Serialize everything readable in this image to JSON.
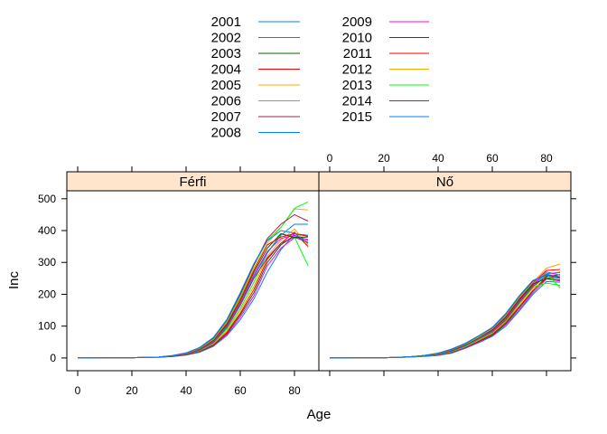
{
  "chart_data": {
    "type": "line",
    "xlabel": "Age",
    "ylabel": "Inc",
    "xlim": [
      -4,
      89
    ],
    "ylim": [
      -40,
      525
    ],
    "x_ticks": [
      "0",
      "20",
      "40",
      "60",
      "80"
    ],
    "y_ticks": [
      "0",
      "100",
      "200",
      "300",
      "400",
      "500"
    ],
    "panels": [
      {
        "label": "Férfi"
      },
      {
        "label": "Nő"
      }
    ],
    "x": [
      0,
      5,
      10,
      15,
      20,
      25,
      30,
      35,
      40,
      45,
      50,
      55,
      60,
      65,
      70,
      75,
      80,
      85
    ],
    "legend": {
      "placement": "top",
      "columns": 2
    },
    "series": [
      {
        "name": "2001",
        "color": "#0080ff",
        "Férfi": [
          0,
          0,
          1,
          1,
          1,
          2,
          3,
          5,
          9,
          18,
          36,
          70,
          120,
          185,
          270,
          340,
          390,
          385
        ],
        "Nő": [
          0,
          0,
          1,
          1,
          1,
          2,
          3,
          5,
          8,
          15,
          30,
          48,
          68,
          100,
          148,
          200,
          240,
          238
        ]
      },
      {
        "name": "2002",
        "color": "#ff00ff",
        "Férfi": [
          0,
          0,
          1,
          1,
          1,
          2,
          3,
          5,
          10,
          20,
          38,
          72,
          128,
          195,
          290,
          345,
          378,
          365
        ],
        "Nő": [
          0,
          0,
          1,
          1,
          1,
          2,
          3,
          6,
          9,
          17,
          31,
          50,
          70,
          105,
          152,
          205,
          248,
          242
        ]
      },
      {
        "name": "2003",
        "color": "#006400",
        "Férfi": [
          0,
          0,
          1,
          1,
          1,
          2,
          2,
          5,
          10,
          21,
          40,
          76,
          135,
          205,
          300,
          355,
          385,
          360
        ],
        "Nő": [
          0,
          0,
          1,
          1,
          1,
          2,
          3,
          6,
          10,
          18,
          33,
          52,
          72,
          108,
          158,
          210,
          255,
          262
        ]
      },
      {
        "name": "2004",
        "color": "#ff0000",
        "Férfi": [
          0,
          0,
          1,
          1,
          1,
          2,
          3,
          6,
          11,
          22,
          42,
          80,
          140,
          215,
          310,
          360,
          395,
          350
        ],
        "Nő": [
          0,
          0,
          1,
          1,
          1,
          2,
          3,
          6,
          10,
          19,
          34,
          54,
          75,
          112,
          162,
          212,
          250,
          255
        ]
      },
      {
        "name": "2005",
        "color": "#ffa500",
        "Férfi": [
          0,
          0,
          1,
          1,
          1,
          2,
          3,
          6,
          12,
          23,
          44,
          84,
          148,
          225,
          320,
          370,
          405,
          355
        ],
        "Nő": [
          0,
          0,
          1,
          1,
          1,
          2,
          3,
          6,
          11,
          20,
          35,
          56,
          78,
          115,
          168,
          218,
          262,
          270
        ]
      },
      {
        "name": "2006",
        "color": "#00ff00",
        "Férfi": [
          0,
          0,
          1,
          1,
          1,
          2,
          3,
          6,
          12,
          24,
          46,
          90,
          155,
          238,
          330,
          390,
          380,
          290
        ],
        "Nő": [
          0,
          0,
          1,
          1,
          1,
          2,
          3,
          6,
          11,
          21,
          36,
          58,
          80,
          118,
          172,
          222,
          235,
          228
        ]
      },
      {
        "name": "2007",
        "color": "#a0205a",
        "Férfi": [
          0,
          0,
          1,
          1,
          1,
          2,
          3,
          6,
          12,
          25,
          48,
          95,
          165,
          250,
          315,
          360,
          380,
          372
        ],
        "Nő": [
          0,
          0,
          1,
          1,
          1,
          2,
          4,
          7,
          12,
          22,
          38,
          60,
          82,
          120,
          175,
          225,
          258,
          250
        ]
      },
      {
        "name": "2008",
        "color": "#0080ff",
        "Férfi": [
          0,
          0,
          1,
          1,
          1,
          2,
          3,
          6,
          13,
          26,
          50,
          98,
          170,
          255,
          330,
          385,
          420,
          420
        ],
        "Nő": [
          0,
          0,
          1,
          1,
          1,
          2,
          4,
          7,
          12,
          22,
          38,
          61,
          84,
          124,
          178,
          228,
          265,
          268
        ]
      },
      {
        "name": "2009",
        "color": "#ff00ff",
        "Férfi": [
          0,
          0,
          1,
          1,
          1,
          2,
          3,
          7,
          13,
          27,
          52,
          100,
          172,
          260,
          335,
          375,
          385,
          370
        ],
        "Nő": [
          0,
          0,
          1,
          1,
          1,
          2,
          4,
          7,
          13,
          23,
          40,
          62,
          86,
          126,
          180,
          230,
          270,
          260
        ]
      },
      {
        "name": "2010",
        "color": "#006400",
        "Férfi": [
          0,
          0,
          1,
          1,
          1,
          2,
          3,
          7,
          14,
          28,
          54,
          104,
          178,
          268,
          345,
          390,
          378,
          380
        ],
        "Nő": [
          0,
          0,
          1,
          1,
          1,
          2,
          4,
          7,
          13,
          24,
          41,
          64,
          88,
          128,
          183,
          232,
          250,
          245
        ]
      },
      {
        "name": "2011",
        "color": "#ff0000",
        "Férfi": [
          0,
          0,
          1,
          1,
          1,
          2,
          3,
          7,
          14,
          29,
          56,
          108,
          185,
          275,
          355,
          380,
          390,
          382
        ],
        "Nő": [
          0,
          0,
          1,
          1,
          1,
          2,
          4,
          8,
          14,
          25,
          42,
          65,
          90,
          130,
          186,
          235,
          275,
          278
        ]
      },
      {
        "name": "2012",
        "color": "#ffa500",
        "Férfi": [
          0,
          0,
          1,
          1,
          1,
          2,
          3,
          7,
          14,
          30,
          58,
          112,
          190,
          282,
          360,
          410,
          468,
          465
        ],
        "Nő": [
          0,
          0,
          1,
          1,
          1,
          2,
          4,
          8,
          14,
          26,
          43,
          66,
          92,
          134,
          190,
          238,
          282,
          295
        ]
      },
      {
        "name": "2013",
        "color": "#00ff00",
        "Férfi": [
          0,
          0,
          1,
          1,
          1,
          2,
          3,
          7,
          15,
          31,
          60,
          115,
          195,
          290,
          370,
          410,
          470,
          490
        ],
        "Nő": [
          0,
          0,
          1,
          1,
          1,
          2,
          4,
          8,
          15,
          27,
          44,
          68,
          94,
          136,
          192,
          240,
          265,
          220
        ]
      },
      {
        "name": "2014",
        "color": "#a0205a",
        "Férfi": [
          0,
          0,
          1,
          1,
          1,
          2,
          3,
          7,
          15,
          32,
          62,
          118,
          200,
          292,
          375,
          420,
          450,
          430
        ],
        "Nő": [
          0,
          0,
          1,
          1,
          1,
          2,
          4,
          8,
          15,
          27,
          45,
          69,
          95,
          138,
          194,
          242,
          262,
          255
        ]
      },
      {
        "name": "2015",
        "color": "#0080ff",
        "Férfi": [
          0,
          0,
          1,
          1,
          1,
          2,
          3,
          8,
          16,
          33,
          64,
          120,
          205,
          296,
          368,
          400,
          392,
          360
        ],
        "Nő": [
          0,
          0,
          1,
          1,
          1,
          2,
          4,
          8,
          15,
          28,
          46,
          70,
          96,
          140,
          196,
          244,
          260,
          252
        ]
      }
    ]
  }
}
